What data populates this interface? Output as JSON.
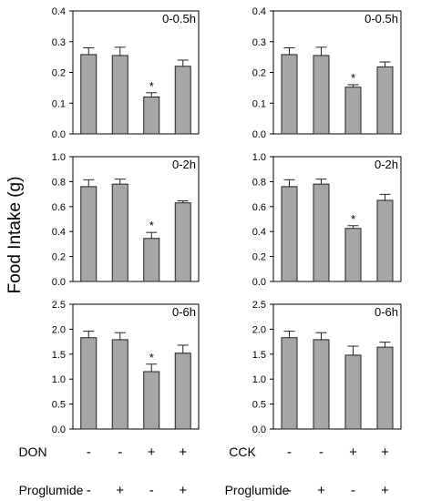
{
  "figure": {
    "ylabel": "Food Intake (g)",
    "groups": {
      "left": {
        "agent_label": "DON",
        "proglumide_label": "Proglumide"
      },
      "right": {
        "agent_label": "CCK",
        "proglumide_label": "Proglumide"
      }
    },
    "agent_row": [
      "-",
      "-",
      "+",
      "+"
    ],
    "proglumide_row": [
      "-",
      "+",
      "-",
      "+"
    ]
  },
  "colors": {
    "bar_fill": "#a6a6a6",
    "bar_stroke": "#222222",
    "axis": "#000000",
    "text": "#000000"
  },
  "chart_data": [
    {
      "id": "don_0_05h",
      "type": "bar",
      "title": "0-0.5h",
      "categories": [
        "DON- Proglumide-",
        "DON- Proglumide+",
        "DON+ Proglumide-",
        "DON+ Proglumide+"
      ],
      "values": [
        0.258,
        0.255,
        0.12,
        0.22
      ],
      "errors": [
        0.022,
        0.027,
        0.014,
        0.02
      ],
      "significance": [
        "",
        "",
        "*",
        ""
      ],
      "ylim": [
        0,
        0.4
      ],
      "yticks": [
        "0.0",
        "0.1",
        "0.2",
        "0.3",
        "0.4"
      ]
    },
    {
      "id": "cck_0_05h",
      "type": "bar",
      "title": "0-0.5h",
      "categories": [
        "CCK- Proglumide-",
        "CCK- Proglumide+",
        "CCK+ Proglumide-",
        "CCK+ Proglumide+"
      ],
      "values": [
        0.258,
        0.255,
        0.152,
        0.218
      ],
      "errors": [
        0.022,
        0.027,
        0.008,
        0.016
      ],
      "significance": [
        "",
        "",
        "*",
        ""
      ],
      "ylim": [
        0,
        0.4
      ],
      "yticks": [
        "0.0",
        "0.1",
        "0.2",
        "0.3",
        "0.4"
      ]
    },
    {
      "id": "don_0_2h",
      "type": "bar",
      "title": "0-2h",
      "categories": [
        "DON- Proglumide-",
        "DON- Proglumide+",
        "DON+ Proglumide-",
        "DON+ Proglumide+"
      ],
      "values": [
        0.76,
        0.78,
        0.345,
        0.63
      ],
      "errors": [
        0.055,
        0.04,
        0.048,
        0.016
      ],
      "significance": [
        "",
        "",
        "*",
        ""
      ],
      "ylim": [
        0,
        1.0
      ],
      "yticks": [
        "0.0",
        "0.2",
        "0.4",
        "0.6",
        "0.8",
        "1.0"
      ]
    },
    {
      "id": "cck_0_2h",
      "type": "bar",
      "title": "0-2h",
      "categories": [
        "CCK- Proglumide-",
        "CCK- Proglumide+",
        "CCK+ Proglumide-",
        "CCK+ Proglumide+"
      ],
      "values": [
        0.76,
        0.78,
        0.425,
        0.65
      ],
      "errors": [
        0.055,
        0.04,
        0.022,
        0.048
      ],
      "significance": [
        "",
        "",
        "*",
        ""
      ],
      "ylim": [
        0,
        1.0
      ],
      "yticks": [
        "0.0",
        "0.2",
        "0.4",
        "0.6",
        "0.8",
        "1.0"
      ]
    },
    {
      "id": "don_0_6h",
      "type": "bar",
      "title": "0-6h",
      "categories": [
        "DON- Proglumide-",
        "DON- Proglumide+",
        "DON+ Proglumide-",
        "DON+ Proglumide+"
      ],
      "values": [
        1.83,
        1.79,
        1.15,
        1.52
      ],
      "errors": [
        0.13,
        0.14,
        0.15,
        0.16
      ],
      "significance": [
        "",
        "",
        "*",
        ""
      ],
      "ylim": [
        0,
        2.5
      ],
      "yticks": [
        "0.0",
        "0.5",
        "1.0",
        "1.5",
        "2.0",
        "2.5"
      ]
    },
    {
      "id": "cck_0_6h",
      "type": "bar",
      "title": "0-6h",
      "categories": [
        "CCK- Proglumide-",
        "CCK- Proglumide+",
        "CCK+ Proglumide-",
        "CCK+ Proglumide+"
      ],
      "values": [
        1.83,
        1.79,
        1.48,
        1.64
      ],
      "errors": [
        0.13,
        0.14,
        0.18,
        0.1
      ],
      "significance": [
        "",
        "",
        "",
        ""
      ],
      "ylim": [
        0,
        2.5
      ],
      "yticks": [
        "0.0",
        "0.5",
        "1.0",
        "1.5",
        "2.0",
        "2.5"
      ]
    }
  ]
}
